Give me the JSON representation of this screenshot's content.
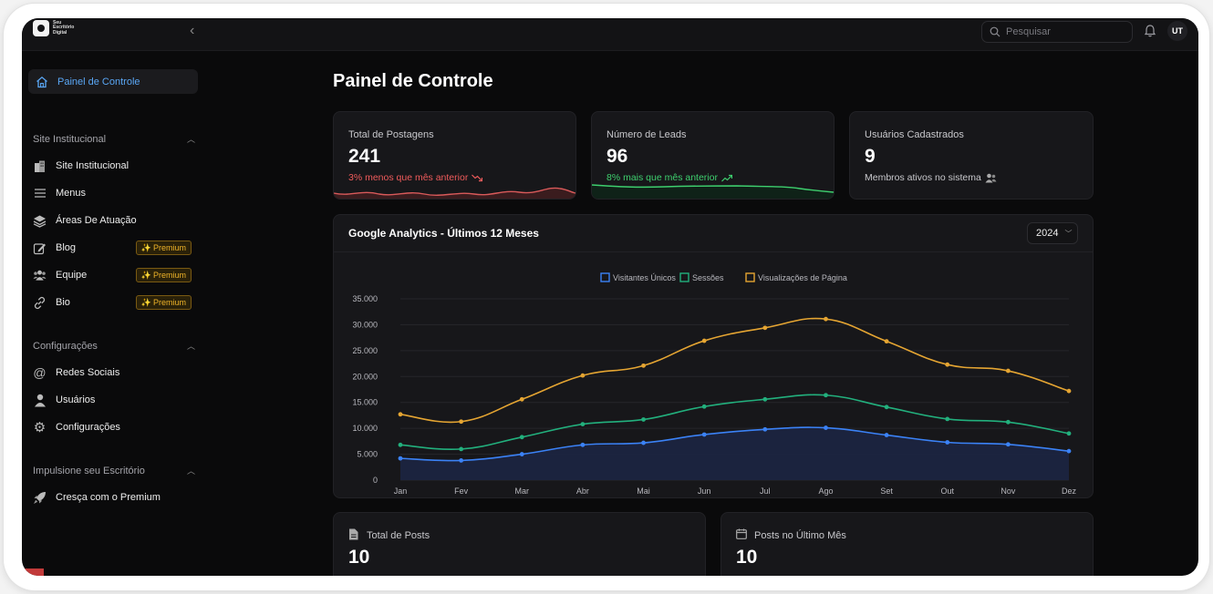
{
  "brand": {
    "line1": "Seu",
    "line2": "Escritório",
    "line3": "Digital"
  },
  "search": {
    "placeholder": "Pesquisar"
  },
  "user": {
    "initials": "UT"
  },
  "sidebar": {
    "active": {
      "label": "Painel de Controle",
      "icon": "home-icon"
    },
    "sections": [
      {
        "title": "Site Institucional",
        "items": [
          {
            "label": "Site Institucional",
            "icon": "building-icon"
          },
          {
            "label": "Menus",
            "icon": "menu-icon"
          },
          {
            "label": "Áreas De Atuação",
            "icon": "layers-icon"
          },
          {
            "label": "Blog",
            "icon": "edit-icon",
            "badge": "Premium"
          },
          {
            "label": "Equipe",
            "icon": "team-icon",
            "badge": "Premium"
          },
          {
            "label": "Bio",
            "icon": "link-icon",
            "badge": "Premium"
          }
        ]
      },
      {
        "title": "Configurações",
        "items": [
          {
            "label": "Redes Sociais",
            "icon": "at-icon"
          },
          {
            "label": "Usuários",
            "icon": "user-icon"
          },
          {
            "label": "Configurações",
            "icon": "gear-icon"
          }
        ]
      },
      {
        "title": "Impulsione seu Escritório",
        "items": [
          {
            "label": "Cresça com o Premium",
            "icon": "rocket-icon"
          }
        ]
      }
    ]
  },
  "page": {
    "title": "Painel de Controle"
  },
  "stats": [
    {
      "label": "Total de Postagens",
      "value": "241",
      "sub": "3% menos que mês anterior",
      "trend": "down",
      "color": "#ef5b5b"
    },
    {
      "label": "Número de Leads",
      "value": "96",
      "sub": "8% mais que mês anterior",
      "trend": "up",
      "color": "#3ecf6e"
    },
    {
      "label": "Usuários Cadastrados",
      "value": "9",
      "sub": "Membros ativos no sistema",
      "trend": "none",
      "color": "#c8c8cc"
    }
  ],
  "analytics": {
    "title": "Google Analytics - Últimos 12 Meses",
    "year": "2024"
  },
  "chart_data": {
    "type": "line",
    "categories": [
      "Jan",
      "Fev",
      "Mar",
      "Abr",
      "Mai",
      "Jun",
      "Jul",
      "Ago",
      "Set",
      "Out",
      "Nov",
      "Dez"
    ],
    "y_ticks": [
      "35.000",
      "30.000",
      "25.000",
      "20.000",
      "15.000",
      "10.000",
      "5.000",
      "0"
    ],
    "ylim": [
      0,
      35000
    ],
    "grid": true,
    "legend_position": "top-center",
    "series": [
      {
        "name": "Visitantes Únicos",
        "color": "#3b82f6",
        "fill": true,
        "values": [
          4200,
          3800,
          5000,
          6800,
          7200,
          8800,
          9800,
          10100,
          8700,
          7300,
          6900,
          5600
        ]
      },
      {
        "name": "Sessões",
        "color": "#22b07d",
        "fill": false,
        "values": [
          6800,
          6000,
          8300,
          10800,
          11700,
          14200,
          15600,
          16400,
          14100,
          11800,
          11200,
          9000
        ]
      },
      {
        "name": "Visualizações de Página",
        "color": "#e5a532",
        "fill": false,
        "values": [
          12700,
          11300,
          15600,
          20200,
          22100,
          26900,
          29400,
          31100,
          26800,
          22300,
          21100,
          17200
        ]
      }
    ]
  },
  "bottom_cards": [
    {
      "label": "Total de Posts",
      "value": "10",
      "icon": "file-icon"
    },
    {
      "label": "Posts no Último Mês",
      "value": "10",
      "icon": "calendar-icon"
    }
  ]
}
